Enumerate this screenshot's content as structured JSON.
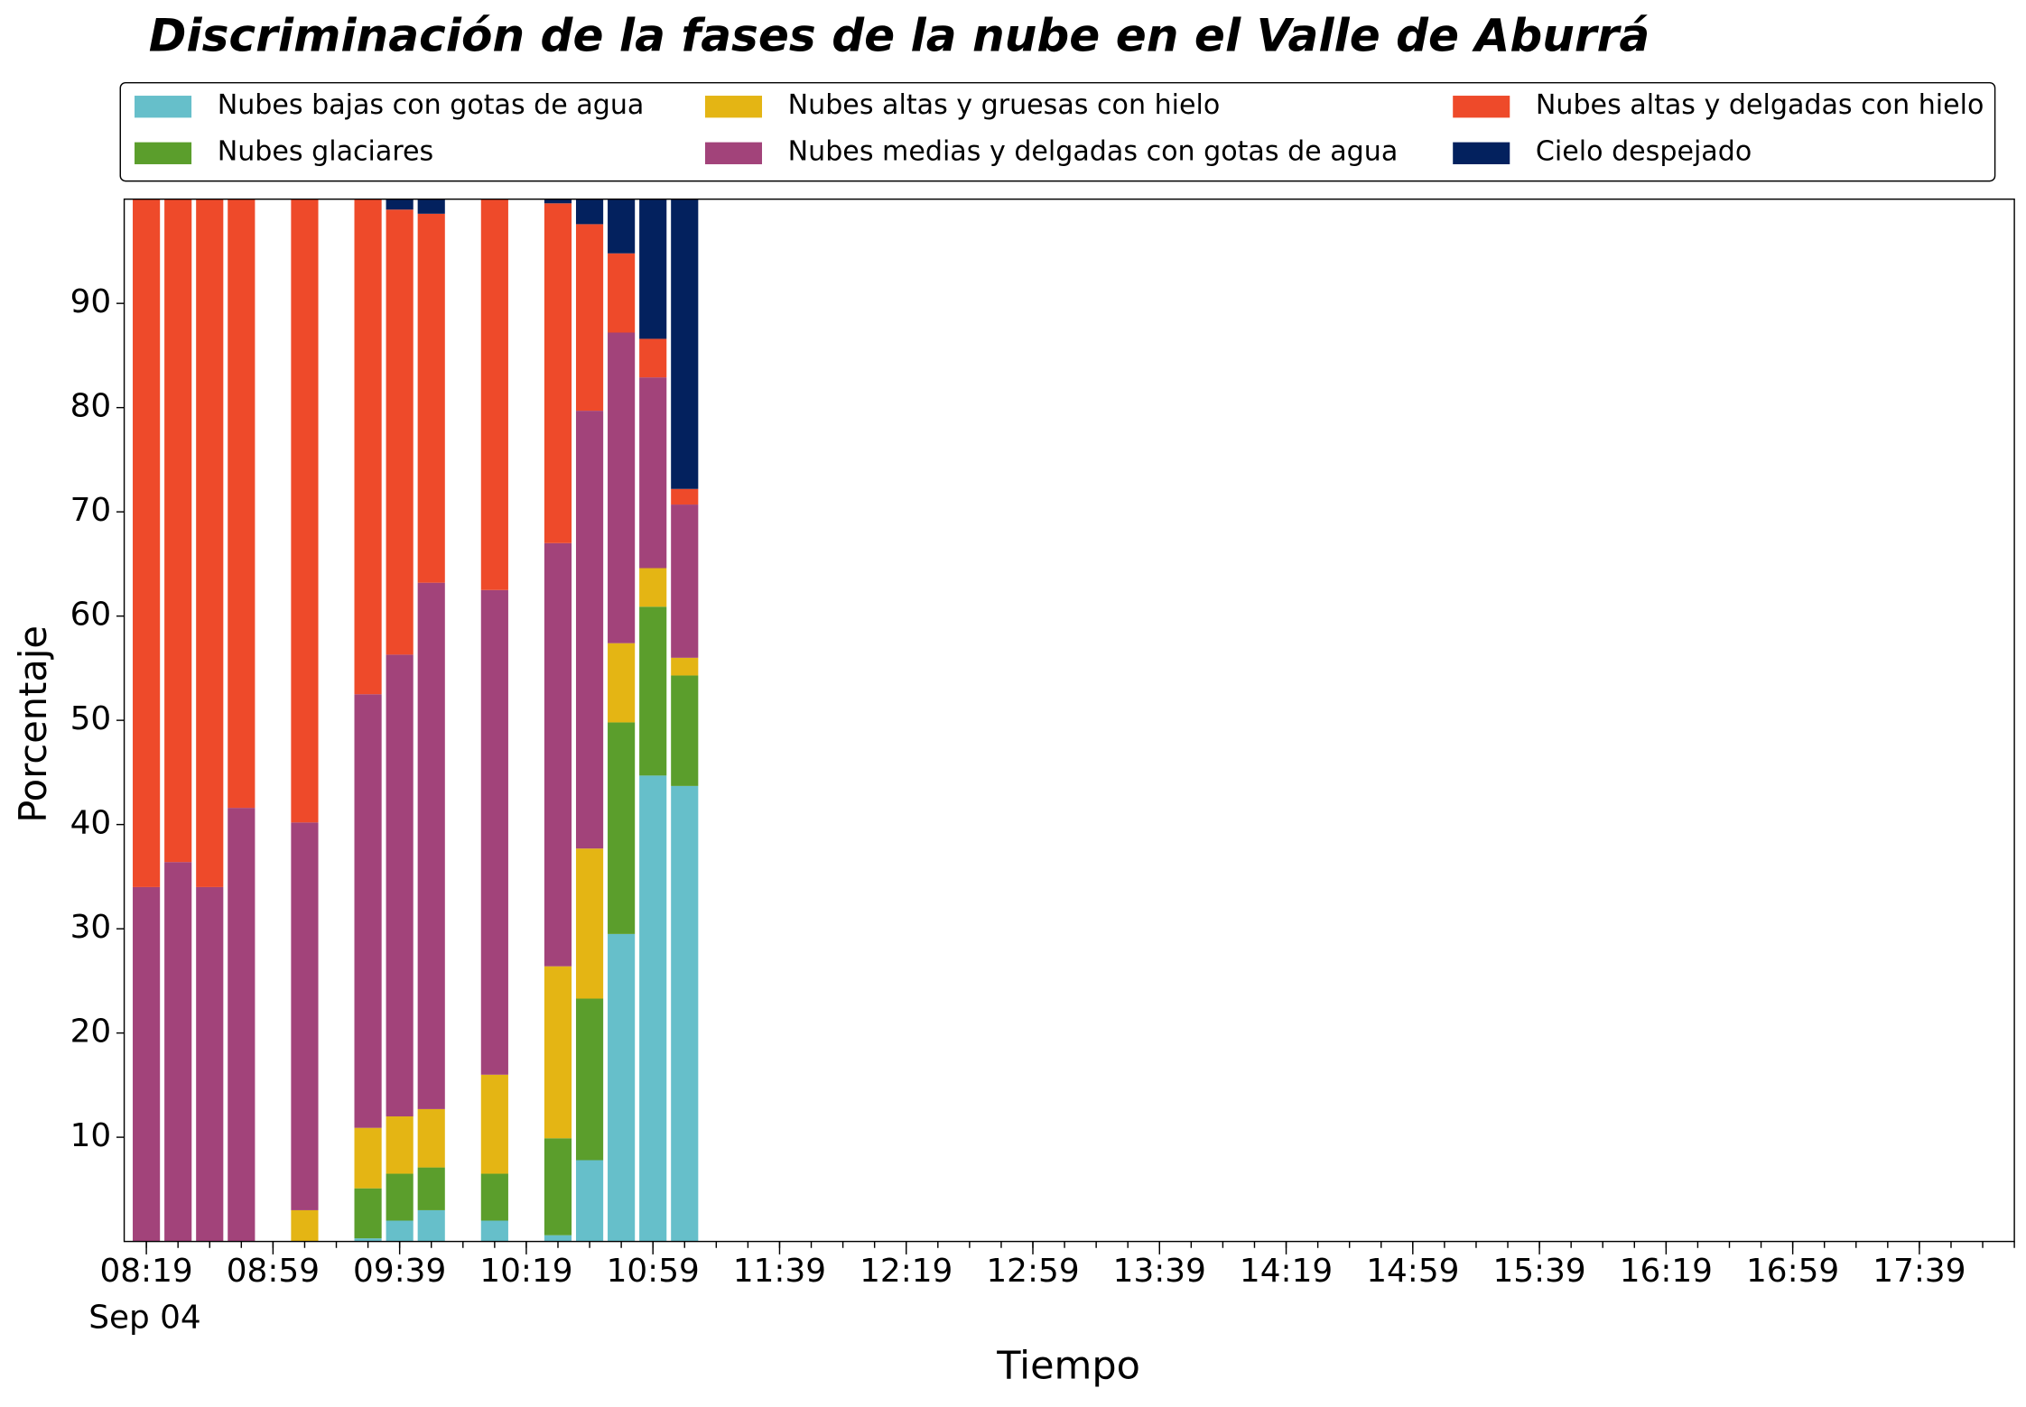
{
  "chart_data": {
    "type": "stacked-bar",
    "title": "Discriminación de la fases de la nube en el Valle de Aburrá",
    "xlabel": "Tiempo",
    "ylabel": "Porcentaje",
    "x_date_label": "Sep 04",
    "x": [
      "08:19",
      "08:29",
      "08:39",
      "08:49",
      "09:09",
      "09:29",
      "09:39",
      "09:49",
      "10:09",
      "10:29",
      "10:39",
      "10:49",
      "10:59",
      "11:09"
    ],
    "series": [
      {
        "name": "Nubes bajas con gotas de agua",
        "color": "#66bfca",
        "values": [
          0,
          0,
          0,
          0,
          0,
          0.3,
          2,
          3,
          2,
          0.6,
          7.8,
          29.5,
          44.7,
          43.7
        ]
      },
      {
        "name": "Nubes glaciares",
        "color": "#5b9e2c",
        "values": [
          0,
          0,
          0,
          0,
          0,
          4.8,
          4.5,
          4.1,
          4.5,
          9.3,
          15.5,
          20.3,
          16.2,
          10.6
        ]
      },
      {
        "name": "Nubes altas y gruesas con hielo",
        "color": "#e4b514",
        "values": [
          0,
          0,
          0,
          0,
          3,
          5.8,
          5.5,
          5.6,
          9.5,
          16.5,
          14.4,
          7.6,
          3.7,
          1.7
        ]
      },
      {
        "name": "Nubes medias y delgadas con gotas de agua",
        "color": "#a2437a",
        "values": [
          34,
          36.4,
          34,
          41.6,
          37.2,
          41.6,
          44.3,
          50.5,
          46.5,
          40.6,
          42,
          29.8,
          18.3,
          14.7
        ]
      },
      {
        "name": "Nubes altas y delgadas con hielo",
        "color": "#ee4a2a",
        "values": [
          66,
          63.6,
          66,
          58.4,
          59.8,
          47.5,
          42.7,
          35.4,
          37.5,
          32.6,
          17.9,
          7.6,
          3.7,
          1.5
        ]
      },
      {
        "name": "Cielo despejado",
        "color": "#03215e",
        "values": [
          0,
          0,
          0,
          0,
          0,
          0,
          1,
          1.4,
          0,
          0.4,
          2.4,
          5.2,
          13.4,
          27.8
        ]
      }
    ],
    "xlim": [
      "08:12",
      "18:09"
    ],
    "xticks": [
      "08:19",
      "08:59",
      "09:39",
      "10:19",
      "10:59",
      "11:39",
      "12:19",
      "12:59",
      "13:39",
      "14:19",
      "14:59",
      "15:39",
      "16:19",
      "16:59",
      "17:39"
    ],
    "ylim": [
      0,
      100
    ],
    "yticks": [
      10,
      20,
      30,
      40,
      50,
      60,
      70,
      80,
      90
    ],
    "legend": "top",
    "legend_columns": 3,
    "grid": false
  }
}
